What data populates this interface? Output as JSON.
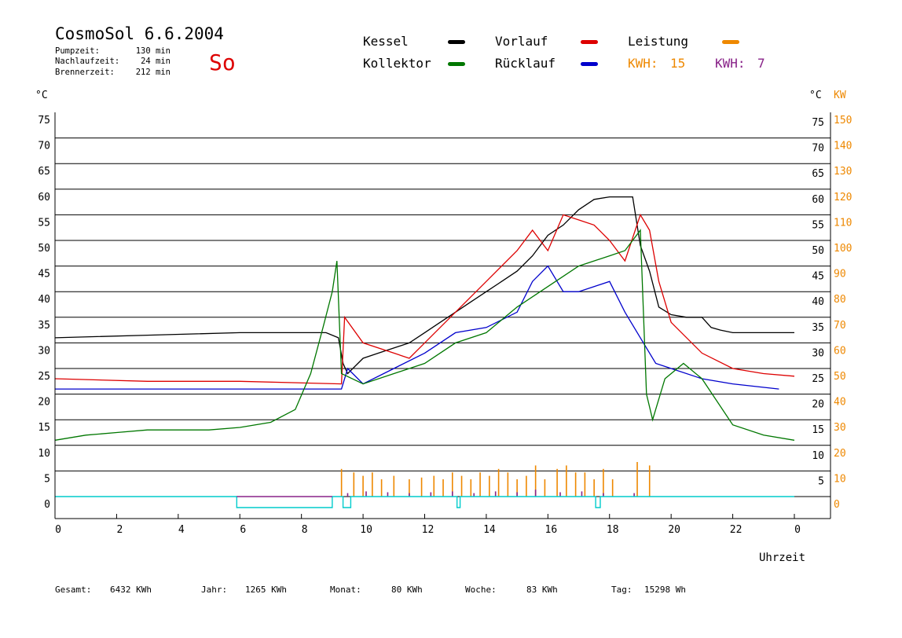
{
  "header": {
    "title": "CosmoSol 6.6.2004",
    "weekday": "So",
    "pump_label": "Pumpzeit:",
    "pump_value": "130 min",
    "follow_label": "Nachlaufzeit:",
    "follow_value": "24 min",
    "burner_label": "Brennerzeit:",
    "burner_value": "212 min"
  },
  "legend": {
    "kessel": "Kessel",
    "vorlauf": "Vorlauf",
    "leistung": "Leistung",
    "kollektor": "Kollektor",
    "ruecklauf": "Rücklauf",
    "kwh1_label": "KWH:",
    "kwh1_value": "15",
    "kwh2_label": "KWH:",
    "kwh2_value": "7"
  },
  "footer": {
    "gesamt_label": "Gesamt:",
    "gesamt_value": "6432 KWh",
    "jahr_label": "Jahr:",
    "jahr_value": "1265 KWh",
    "monat_label": "Monat:",
    "monat_value": "80 KWh",
    "woche_label": "Woche:",
    "woche_value": "83 KWh",
    "tag_label": "Tag:",
    "tag_value": "15298 Wh"
  },
  "colors": {
    "kessel": "#000000",
    "vorlauf": "#dd0000",
    "ruecklauf": "#0000cc",
    "kollektor": "#007700",
    "leistung": "#ee8800",
    "kwh2": "#882288",
    "pump": "#00cccc",
    "weekday": "#dd0000"
  },
  "chart_data": {
    "type": "line",
    "xlabel": "Uhrzeit",
    "ylabel_left": "°C",
    "ylabel_right": "°C",
    "ylabel_right2": "KW",
    "x_ticks": [
      "0",
      "2",
      "4",
      "6",
      "8",
      "10",
      "12",
      "14",
      "16",
      "18",
      "20",
      "22",
      "0"
    ],
    "y_ticks_left": [
      75,
      70,
      65,
      60,
      55,
      50,
      45,
      40,
      35,
      30,
      25,
      20,
      15,
      10,
      5,
      0
    ],
    "y_ticks_right": [
      75,
      70,
      65,
      60,
      55,
      50,
      45,
      40,
      35,
      30,
      25,
      20,
      15,
      10,
      5
    ],
    "y_ticks_kw": [
      150,
      140,
      130,
      120,
      110,
      100,
      90,
      80,
      70,
      60,
      50,
      40,
      30,
      20,
      10,
      0
    ],
    "xlim": [
      0,
      24
    ],
    "ylim": [
      -5,
      75
    ],
    "grid": "horizontal",
    "series": [
      {
        "name": "Kessel",
        "x": [
          0,
          3,
          6,
          8.8,
          9.2,
          9.35,
          9.5,
          10,
          10.5,
          11,
          11.5,
          12,
          12.5,
          13,
          13.5,
          14,
          14.5,
          15,
          15.5,
          16,
          16.5,
          17,
          17.5,
          18,
          18.5,
          18.75,
          19,
          19.3,
          19.6,
          20,
          20.5,
          21,
          21.3,
          21.6,
          22,
          23,
          24
        ],
        "values": [
          31,
          31.5,
          32,
          32,
          31,
          26,
          24,
          27,
          28,
          29,
          30,
          32,
          34,
          36,
          38,
          40,
          42,
          44,
          47,
          51,
          53,
          56,
          58,
          58.5,
          58.5,
          58.5,
          49,
          44,
          37,
          35.5,
          35,
          35,
          33,
          32.5,
          32,
          32,
          32
        ]
      },
      {
        "name": "Vorlauf",
        "x": [
          0,
          3,
          6,
          9.3,
          9.4,
          10,
          11,
          11.5,
          12,
          13,
          14,
          15,
          15.5,
          16,
          16.5,
          17,
          17.5,
          18,
          18.5,
          19,
          19.3,
          19.6,
          20,
          21,
          22,
          23,
          24
        ],
        "values": [
          23,
          22.5,
          22.5,
          22,
          35,
          30,
          28,
          27,
          30,
          36,
          42,
          48,
          52,
          48,
          55,
          54,
          53,
          50,
          46,
          55,
          52,
          42,
          34,
          28,
          25,
          24,
          23.5
        ]
      },
      {
        "name": "Rücklauf",
        "x": [
          0,
          4,
          8,
          9.3,
          9.5,
          10,
          11,
          12,
          13,
          14,
          15,
          15.5,
          16,
          16.5,
          17,
          17.5,
          18,
          18.5,
          19,
          19.5,
          20,
          21,
          22,
          23.5
        ],
        "values": [
          21,
          21,
          21,
          21,
          25,
          22,
          25,
          28,
          32,
          33,
          36,
          42,
          45,
          40,
          40,
          41,
          42,
          36,
          31,
          26,
          25,
          23,
          22,
          21
        ]
      },
      {
        "name": "Kollektor",
        "x": [
          0,
          1,
          2,
          3,
          4,
          5,
          6,
          7,
          7.8,
          8.3,
          8.7,
          9.0,
          9.15,
          9.3,
          10,
          11,
          12,
          13,
          14,
          15,
          16,
          17,
          18,
          18.5,
          19.0,
          19.2,
          19.4,
          19.8,
          20.4,
          21,
          22,
          23,
          24
        ],
        "values": [
          11,
          12,
          12.5,
          13,
          13,
          13,
          13.5,
          14.5,
          17,
          24,
          33,
          40,
          46,
          24,
          22,
          24,
          26,
          30,
          32,
          37,
          41,
          45,
          47,
          48,
          52,
          20,
          15,
          23,
          26,
          23,
          14,
          12,
          11
        ]
      }
    ],
    "bars": [
      {
        "name": "Leistung",
        "x": [
          9.3,
          9.7,
          10.0,
          10.3,
          10.6,
          11.0,
          11.5,
          11.9,
          12.3,
          12.6,
          12.9,
          13.2,
          13.5,
          13.8,
          14.1,
          14.4,
          14.7,
          15.0,
          15.3,
          15.6,
          15.9,
          16.3,
          16.6,
          16.9,
          17.2,
          17.5,
          17.8,
          18.1,
          18.9,
          19.3
        ],
        "values": [
          16,
          14,
          12,
          14,
          10,
          12,
          10,
          11,
          12,
          10,
          14,
          12,
          10,
          14,
          12,
          16,
          14,
          10,
          12,
          18,
          10,
          16,
          18,
          14,
          14,
          10,
          16,
          10,
          20,
          18
        ]
      },
      {
        "name": "KWH",
        "x": [
          9.5,
          10.1,
          10.8,
          11.5,
          12.2,
          12.9,
          13.6,
          14.3,
          15.0,
          15.6,
          16.4,
          17.1,
          17.8,
          18.8
        ],
        "values": [
          2,
          3,
          2.5,
          2,
          2.5,
          3,
          2,
          3,
          2.5,
          4,
          2.5,
          3,
          2,
          2
        ]
      }
    ],
    "pump_runs": [
      {
        "from": 5.9,
        "to": 9.0,
        "level": 1
      },
      {
        "from": 9.35,
        "to": 9.6,
        "level": 1
      },
      {
        "from": 13.05,
        "to": 13.15,
        "level": 1
      },
      {
        "from": 17.55,
        "to": 17.7,
        "level": 1
      }
    ]
  }
}
